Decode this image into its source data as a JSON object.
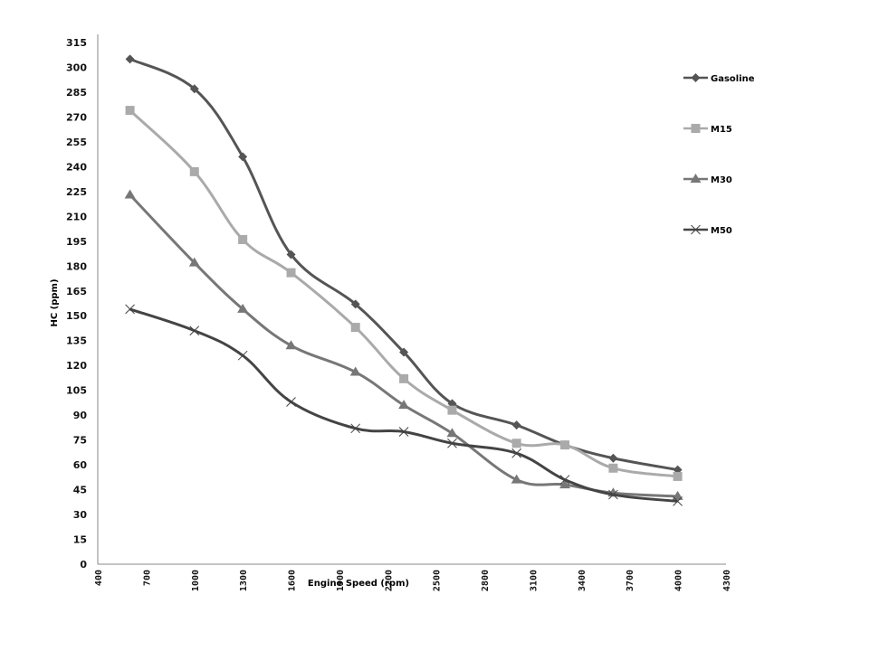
{
  "chart_data": {
    "type": "line",
    "title": "",
    "xlabel": "Engine Speed (rpm)",
    "ylabel": "HC (ppm)",
    "xlim": [
      400,
      4300
    ],
    "ylim": [
      0,
      315
    ],
    "x_ticks": [
      400,
      700,
      1000,
      1300,
      1600,
      1900,
      2200,
      2500,
      2800,
      3100,
      3400,
      3700,
      4000,
      4300
    ],
    "y_ticks": [
      0,
      15,
      30,
      45,
      60,
      75,
      90,
      105,
      120,
      135,
      150,
      165,
      180,
      195,
      210,
      225,
      240,
      255,
      270,
      285,
      300,
      315
    ],
    "grid": false,
    "legend_position": "right",
    "x": [
      600,
      1000,
      1300,
      1600,
      2000,
      2300,
      2600,
      3000,
      3300,
      3600,
      4000
    ],
    "series": [
      {
        "name": "Gasoline",
        "marker": "diamond",
        "color": "#555555",
        "values": [
          305,
          287,
          246,
          187,
          157,
          128,
          97,
          84,
          72,
          64,
          57
        ]
      },
      {
        "name": "M15",
        "marker": "square",
        "color": "#aaaaaa",
        "values": [
          274,
          237,
          196,
          176,
          143,
          112,
          93,
          73,
          72,
          58,
          53
        ]
      },
      {
        "name": "M30",
        "marker": "triangle",
        "color": "#777777",
        "values": [
          223,
          182,
          154,
          132,
          116,
          96,
          79,
          51,
          48,
          43,
          41
        ]
      },
      {
        "name": "M50",
        "marker": "x",
        "color": "#444444",
        "values": [
          154,
          141,
          126,
          98,
          82,
          80,
          73,
          67,
          51,
          42,
          38
        ]
      }
    ]
  }
}
